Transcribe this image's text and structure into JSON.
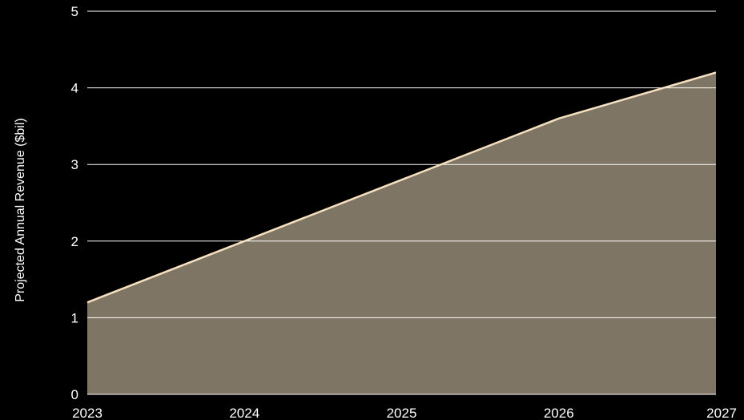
{
  "chart_data": {
    "type": "area",
    "title": "",
    "xlabel": "",
    "ylabel": "Projected Annual Revenue ($bil)",
    "x": [
      "2023",
      "2024",
      "2025",
      "2026",
      "2027"
    ],
    "series": [
      {
        "values": [
          1.2,
          2.0,
          2.8,
          3.6,
          4.2
        ]
      }
    ],
    "ylim": [
      0,
      5
    ],
    "yticks": [
      "0",
      "1",
      "2",
      "3",
      "4",
      "5"
    ],
    "grid": true,
    "legend": "none",
    "colors": {
      "background": "#000000",
      "area_fill": "#7f7565",
      "line": "#f5e1c0",
      "grid": "#ffffff",
      "text": "#ffffff"
    }
  }
}
